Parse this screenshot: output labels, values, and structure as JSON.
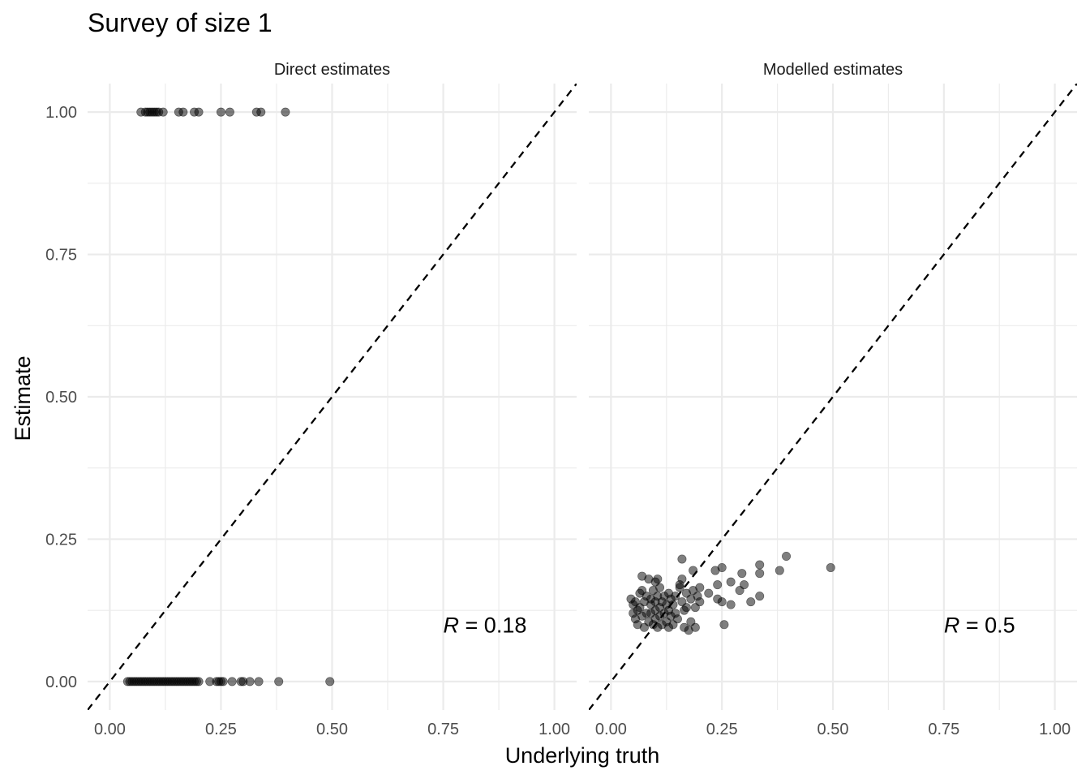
{
  "chart_data": {
    "type": "scatter",
    "title": "Survey of size 1",
    "xlabel": "Underlying truth",
    "ylabel": "Estimate",
    "xlim": [
      -0.05,
      1.05
    ],
    "ylim": [
      -0.05,
      1.05
    ],
    "x_ticks": [
      "0.00",
      "0.25",
      "0.50",
      "0.75",
      "1.00"
    ],
    "y_ticks": [
      "0.00",
      "0.25",
      "0.50",
      "0.75",
      "1.00"
    ],
    "grid": true,
    "reference_line": "y = x (dashed)",
    "panels": [
      {
        "name": "Direct estimates",
        "annotation": {
          "label": "R",
          "text": " = 0.18",
          "x": 0.75,
          "y": 0.1
        },
        "points": [
          [
            0.07,
            1
          ],
          [
            0.08,
            1
          ],
          [
            0.085,
            1
          ],
          [
            0.09,
            1
          ],
          [
            0.095,
            1
          ],
          [
            0.1,
            1
          ],
          [
            0.105,
            1
          ],
          [
            0.11,
            1
          ],
          [
            0.12,
            1
          ],
          [
            0.155,
            1
          ],
          [
            0.165,
            1
          ],
          [
            0.19,
            1
          ],
          [
            0.2,
            1
          ],
          [
            0.25,
            1
          ],
          [
            0.27,
            1
          ],
          [
            0.33,
            1
          ],
          [
            0.34,
            1
          ],
          [
            0.395,
            1
          ],
          [
            0.04,
            0
          ],
          [
            0.045,
            0
          ],
          [
            0.05,
            0
          ],
          [
            0.055,
            0
          ],
          [
            0.06,
            0
          ],
          [
            0.065,
            0
          ],
          [
            0.07,
            0
          ],
          [
            0.075,
            0
          ],
          [
            0.08,
            0
          ],
          [
            0.085,
            0
          ],
          [
            0.09,
            0
          ],
          [
            0.095,
            0
          ],
          [
            0.1,
            0
          ],
          [
            0.105,
            0
          ],
          [
            0.11,
            0
          ],
          [
            0.115,
            0
          ],
          [
            0.12,
            0
          ],
          [
            0.125,
            0
          ],
          [
            0.13,
            0
          ],
          [
            0.135,
            0
          ],
          [
            0.14,
            0
          ],
          [
            0.145,
            0
          ],
          [
            0.15,
            0
          ],
          [
            0.155,
            0
          ],
          [
            0.16,
            0
          ],
          [
            0.165,
            0
          ],
          [
            0.17,
            0
          ],
          [
            0.175,
            0
          ],
          [
            0.18,
            0
          ],
          [
            0.185,
            0
          ],
          [
            0.19,
            0
          ],
          [
            0.195,
            0
          ],
          [
            0.2,
            0
          ],
          [
            0.225,
            0
          ],
          [
            0.24,
            0
          ],
          [
            0.245,
            0
          ],
          [
            0.25,
            0
          ],
          [
            0.255,
            0
          ],
          [
            0.275,
            0
          ],
          [
            0.295,
            0
          ],
          [
            0.3,
            0
          ],
          [
            0.315,
            0
          ],
          [
            0.335,
            0
          ],
          [
            0.38,
            0
          ],
          [
            0.495,
            0
          ]
        ]
      },
      {
        "name": "Modelled estimates",
        "annotation": {
          "label": "R",
          "text": " = 0.5",
          "x": 0.75,
          "y": 0.1
        },
        "points": [
          [
            0.045,
            0.145
          ],
          [
            0.05,
            0.135
          ],
          [
            0.05,
            0.12
          ],
          [
            0.055,
            0.14
          ],
          [
            0.055,
            0.11
          ],
          [
            0.06,
            0.125
          ],
          [
            0.06,
            0.1
          ],
          [
            0.065,
            0.155
          ],
          [
            0.065,
            0.13
          ],
          [
            0.07,
            0.16
          ],
          [
            0.07,
            0.115
          ],
          [
            0.07,
            0.185
          ],
          [
            0.075,
            0.14
          ],
          [
            0.075,
            0.095
          ],
          [
            0.08,
            0.15
          ],
          [
            0.08,
            0.12
          ],
          [
            0.085,
            0.18
          ],
          [
            0.085,
            0.105
          ],
          [
            0.09,
            0.145
          ],
          [
            0.09,
            0.135
          ],
          [
            0.09,
            0.12
          ],
          [
            0.095,
            0.16
          ],
          [
            0.095,
            0.1
          ],
          [
            0.1,
            0.175
          ],
          [
            0.1,
            0.14
          ],
          [
            0.1,
            0.125
          ],
          [
            0.1,
            0.11
          ],
          [
            0.105,
            0.18
          ],
          [
            0.105,
            0.15
          ],
          [
            0.105,
            0.095
          ],
          [
            0.11,
            0.13
          ],
          [
            0.11,
            0.115
          ],
          [
            0.11,
            0.165
          ],
          [
            0.115,
            0.14
          ],
          [
            0.115,
            0.1
          ],
          [
            0.12,
            0.15
          ],
          [
            0.12,
            0.12
          ],
          [
            0.125,
            0.135
          ],
          [
            0.125,
            0.105
          ],
          [
            0.13,
            0.155
          ],
          [
            0.13,
            0.125
          ],
          [
            0.13,
            0.095
          ],
          [
            0.135,
            0.145
          ],
          [
            0.135,
            0.115
          ],
          [
            0.14,
            0.135
          ],
          [
            0.14,
            0.1
          ],
          [
            0.145,
            0.15
          ],
          [
            0.145,
            0.12
          ],
          [
            0.15,
            0.11
          ],
          [
            0.155,
            0.17
          ],
          [
            0.155,
            0.165
          ],
          [
            0.16,
            0.14
          ],
          [
            0.16,
            0.18
          ],
          [
            0.165,
            0.125
          ],
          [
            0.165,
            0.095
          ],
          [
            0.17,
            0.155
          ],
          [
            0.17,
            0.13
          ],
          [
            0.175,
            0.09
          ],
          [
            0.18,
            0.145
          ],
          [
            0.18,
            0.105
          ],
          [
            0.185,
            0.195
          ],
          [
            0.185,
            0.16
          ],
          [
            0.19,
            0.13
          ],
          [
            0.19,
            0.095
          ],
          [
            0.195,
            0.15
          ],
          [
            0.2,
            0.165
          ],
          [
            0.2,
            0.14
          ],
          [
            0.16,
            0.215
          ],
          [
            0.22,
            0.155
          ],
          [
            0.235,
            0.195
          ],
          [
            0.24,
            0.17
          ],
          [
            0.24,
            0.145
          ],
          [
            0.25,
            0.2
          ],
          [
            0.25,
            0.14
          ],
          [
            0.255,
            0.1
          ],
          [
            0.27,
            0.175
          ],
          [
            0.27,
            0.135
          ],
          [
            0.29,
            0.16
          ],
          [
            0.295,
            0.19
          ],
          [
            0.3,
            0.17
          ],
          [
            0.315,
            0.14
          ],
          [
            0.335,
            0.205
          ],
          [
            0.335,
            0.19
          ],
          [
            0.335,
            0.15
          ],
          [
            0.38,
            0.195
          ],
          [
            0.395,
            0.22
          ],
          [
            0.495,
            0.2
          ]
        ]
      }
    ]
  }
}
